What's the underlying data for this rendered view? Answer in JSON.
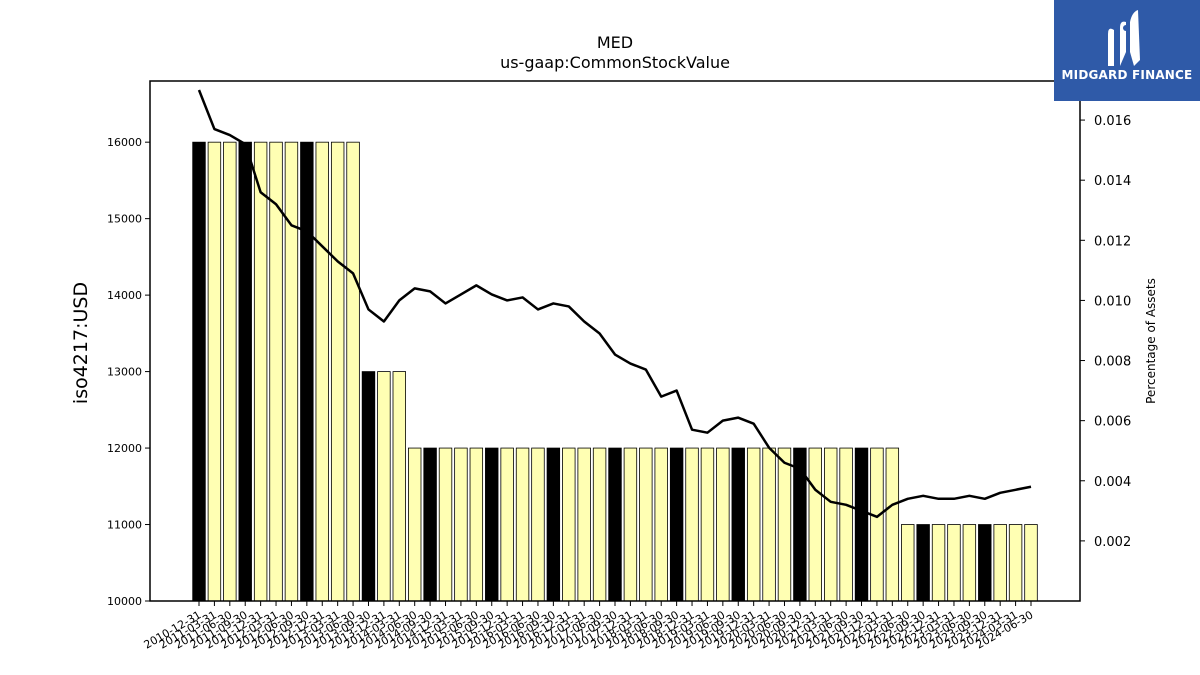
{
  "chart_data": {
    "type": "bar",
    "title": "MED",
    "subtitle": "us-gaap:CommonStockValue",
    "ylabel": "iso4217:USD",
    "y2label": "Percentage of Assets",
    "ylim": [
      10000,
      16800
    ],
    "y2lim": [
      0.0,
      0.0173
    ],
    "yticks": [
      10000,
      11000,
      12000,
      13000,
      14000,
      15000,
      16000
    ],
    "y2ticks": [
      0.002,
      0.004,
      0.006,
      0.008,
      0.01,
      0.012,
      0.014,
      0.016
    ],
    "y2tick_labels": [
      "0.002",
      "0.004",
      "0.006",
      "0.008",
      "0.010",
      "0.012",
      "0.014",
      "0.016"
    ],
    "colors": {
      "annual_bar": "#000000",
      "quarter_bar": "#ffffb3",
      "line": "#000000",
      "bar_edge": "#000000"
    },
    "categories": [
      "2010-12-31",
      "2011-03-31",
      "2011-06-30",
      "2011-09-30",
      "2011-12-31",
      "2012-03-31",
      "2012-06-30",
      "2012-09-30",
      "2012-12-31",
      "2013-03-31",
      "2013-06-30",
      "2013-09-30",
      "2013-12-31",
      "2014-03-31",
      "2014-06-30",
      "2014-09-30",
      "2014-12-31",
      "2015-03-31",
      "2015-06-30",
      "2015-09-30",
      "2015-12-31",
      "2016-03-31",
      "2016-06-30",
      "2016-09-30",
      "2016-12-31",
      "2017-03-31",
      "2017-06-30",
      "2017-09-30",
      "2017-12-31",
      "2018-03-31",
      "2018-06-30",
      "2018-09-30",
      "2018-12-31",
      "2019-03-31",
      "2019-06-30",
      "2019-09-30",
      "2019-12-31",
      "2020-03-31",
      "2020-06-30",
      "2020-09-30",
      "2020-12-31",
      "2021-03-31",
      "2021-06-30",
      "2021-09-30",
      "2021-12-31",
      "2022-03-31",
      "2022-06-30",
      "2022-09-30",
      "2022-12-31",
      "2023-03-31",
      "2023-06-30",
      "2023-09-30",
      "2023-12-31",
      "2024-03-31",
      "2024-06-30"
    ],
    "series": [
      {
        "kind": "bar",
        "values": [
          16000,
          16000,
          16000,
          16000,
          16000,
          16000,
          16000,
          16000,
          16000,
          16000,
          16000,
          13000,
          13000,
          13000,
          12000,
          12000,
          12000,
          12000,
          12000,
          12000,
          12000,
          12000,
          12000,
          12000,
          12000,
          12000,
          12000,
          12000,
          12000,
          12000,
          12000,
          12000,
          12000,
          12000,
          12000,
          12000,
          12000,
          12000,
          12000,
          12000,
          12000,
          12000,
          12000,
          12000,
          12000,
          12000,
          11000,
          11000,
          11000,
          11000,
          11000,
          11000,
          11000,
          11000,
          11000
        ],
        "annual_flags": [
          1,
          0,
          0,
          1,
          0,
          0,
          0,
          1,
          0,
          0,
          0,
          1,
          0,
          0,
          0,
          1,
          0,
          0,
          0,
          1,
          0,
          0,
          0,
          1,
          0,
          0,
          0,
          1,
          0,
          0,
          0,
          1,
          0,
          0,
          0,
          1,
          0,
          0,
          0,
          1,
          0,
          0,
          0,
          1,
          0,
          0,
          0,
          1,
          0,
          0,
          0,
          1,
          0,
          0,
          0
        ]
      },
      {
        "kind": "line",
        "axis": "right",
        "values": [
          0.017,
          0.0157,
          0.0155,
          0.0152,
          0.0136,
          0.0132,
          0.0125,
          0.0123,
          0.0118,
          0.0113,
          0.0109,
          0.0097,
          0.0093,
          0.01,
          0.0104,
          0.0103,
          0.0099,
          0.0102,
          0.0105,
          0.0102,
          0.01,
          0.0101,
          0.0097,
          0.0099,
          0.0098,
          0.0093,
          0.0089,
          0.0082,
          0.0079,
          0.0077,
          0.0068,
          0.007,
          0.0057,
          0.0056,
          0.006,
          0.0061,
          0.0059,
          0.0051,
          0.0046,
          0.0044,
          0.0037,
          0.0033,
          0.0032,
          0.003,
          0.0028,
          0.0032,
          0.0034,
          0.0035,
          0.0034,
          0.0034,
          0.0035,
          0.0034,
          0.0036,
          0.0037,
          0.0038
        ]
      }
    ],
    "grid": false,
    "legend": "none"
  },
  "logo": {
    "text": "MIDGARD FINANCE"
  }
}
